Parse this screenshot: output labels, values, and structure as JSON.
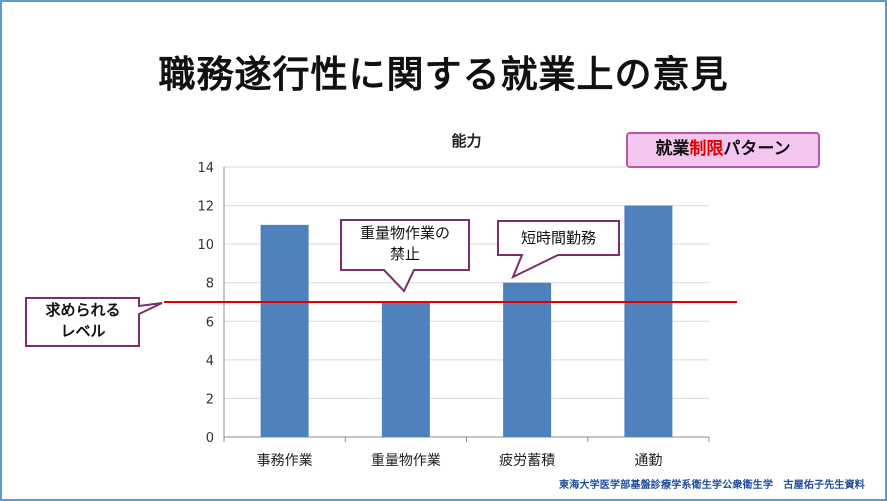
{
  "slide": {
    "title": "職務遂行性に関する就業上の意見",
    "footer": "東海大学医学部基盤診療学系衛生学公衆衛生学　古屋佑子先生資料"
  },
  "badge": {
    "prefix": "就業",
    "highlight": "制限",
    "suffix": "パターン",
    "highlight_color": "#e00000"
  },
  "callouts": {
    "required_level": "求められる\nレベル",
    "heavy_work": "重量物作業の\n禁止",
    "short_time": "短時間勤務"
  },
  "chart_data": {
    "type": "bar",
    "title": "能力",
    "categories": [
      "事務作業",
      "重量物作業",
      "疲労蓄積",
      "通勤"
    ],
    "values": [
      11,
      7,
      8,
      12
    ],
    "ylim": [
      0,
      14
    ],
    "yticks": [
      0,
      2,
      4,
      6,
      8,
      10,
      12,
      14
    ],
    "grid": true,
    "bar_color": "#4f81bd",
    "reference_line": {
      "value": 7,
      "color": "#e00000"
    }
  }
}
